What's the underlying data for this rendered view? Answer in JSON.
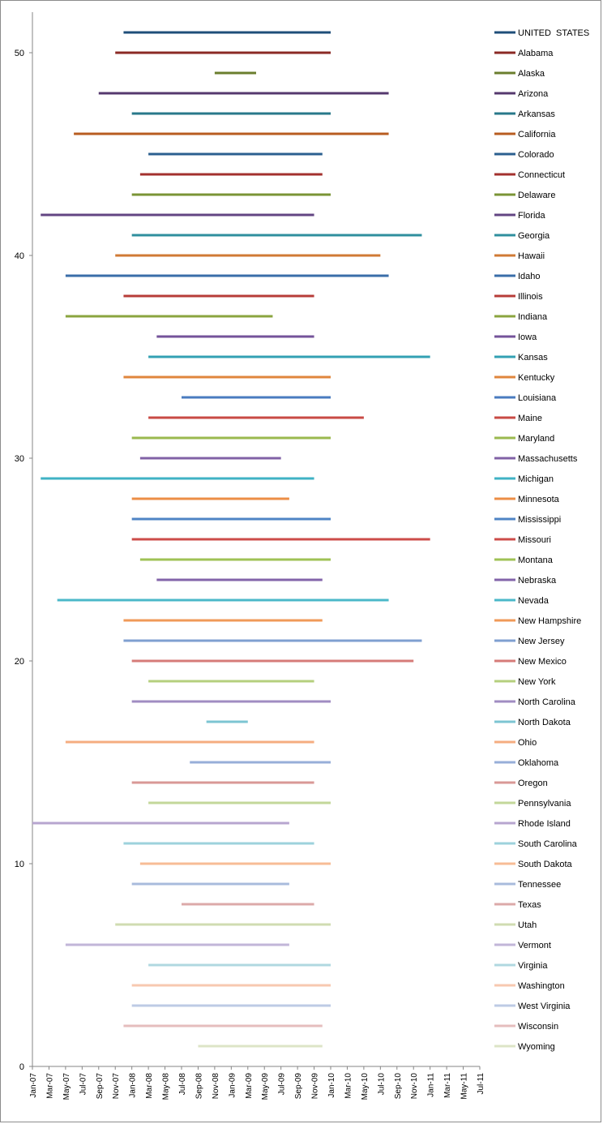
{
  "chart_data": {
    "type": "range-bar",
    "ylim": [
      0,
      52
    ],
    "yticks": [
      "0",
      "10",
      "20",
      "30",
      "40",
      "50"
    ],
    "xlim": [
      "Jan-07",
      "Jul-11"
    ],
    "xticks": [
      "Jan-07",
      "Mar-07",
      "May-07",
      "Jul-07",
      "Sep-07",
      "Nov-07",
      "Jan-08",
      "Mar-08",
      "May-08",
      "Jul-08",
      "Sep-08",
      "Nov-08",
      "Jan-09",
      "Mar-09",
      "May-09",
      "Jul-09",
      "Sep-09",
      "Nov-09",
      "Jan-10",
      "Mar-10",
      "May-10",
      "Jul-10",
      "Sep-10",
      "Nov-10",
      "Jan-11",
      "Mar-11",
      "May-11",
      "Jul-11"
    ],
    "legend_position": "right",
    "grid": false,
    "series": [
      {
        "name": "UNITED  STATES",
        "y": 51,
        "start": "Dec-07",
        "end": "Jan-10",
        "color": "#1f4e79"
      },
      {
        "name": "Alabama",
        "y": 50,
        "start": "Nov-07",
        "end": "Jan-10",
        "color": "#8b2a25"
      },
      {
        "name": "Alaska",
        "y": 49,
        "start": "Nov-08",
        "end": "Apr-09",
        "color": "#6b7e2e"
      },
      {
        "name": "Arizona",
        "y": 48,
        "start": "Sep-07",
        "end": "Aug-10",
        "color": "#55386e"
      },
      {
        "name": "Arkansas",
        "y": 47,
        "start": "Jan-08",
        "end": "Jan-10",
        "color": "#28788a"
      },
      {
        "name": "California",
        "y": 46,
        "start": "Jun-07",
        "end": "Aug-10",
        "color": "#b85d20"
      },
      {
        "name": "Colorado",
        "y": 45,
        "start": "Mar-08",
        "end": "Dec-09",
        "color": "#2b5f8f"
      },
      {
        "name": "Connecticut",
        "y": 44,
        "start": "Feb-08",
        "end": "Dec-09",
        "color": "#a3312e"
      },
      {
        "name": "Delaware",
        "y": 43,
        "start": "Jan-08",
        "end": "Jan-10",
        "color": "#7a9436"
      },
      {
        "name": "Florida",
        "y": 42,
        "start": "Feb-07",
        "end": "Nov-09",
        "color": "#634583"
      },
      {
        "name": "Georgia",
        "y": 41,
        "start": "Jan-08",
        "end": "Dec-10",
        "color": "#2f8f9e"
      },
      {
        "name": "Hawaii",
        "y": 40,
        "start": "Nov-07",
        "end": "Jul-10",
        "color": "#d07a35"
      },
      {
        "name": "Idaho",
        "y": 39,
        "start": "May-07",
        "end": "Aug-10",
        "color": "#3a6ea8"
      },
      {
        "name": "Illinois",
        "y": 38,
        "start": "Dec-07",
        "end": "Nov-09",
        "color": "#b73c38"
      },
      {
        "name": "Indiana",
        "y": 37,
        "start": "May-07",
        "end": "Jun-09",
        "color": "#8ba53f"
      },
      {
        "name": "Iowa",
        "y": 36,
        "start": "Apr-08",
        "end": "Nov-09",
        "color": "#74539a"
      },
      {
        "name": "Kansas",
        "y": 35,
        "start": "Mar-08",
        "end": "Jan-11",
        "color": "#33a1b3"
      },
      {
        "name": "Kentucky",
        "y": 34,
        "start": "Dec-07",
        "end": "Jan-10",
        "color": "#e0863d"
      },
      {
        "name": "Louisiana",
        "y": 33,
        "start": "Jul-08",
        "end": "Jan-10",
        "color": "#4a7bbf"
      },
      {
        "name": "Maine",
        "y": 32,
        "start": "Mar-08",
        "end": "May-10",
        "color": "#c94a45"
      },
      {
        "name": "Maryland",
        "y": 31,
        "start": "Jan-08",
        "end": "Jan-10",
        "color": "#9ab94e"
      },
      {
        "name": "Massachusetts",
        "y": 30,
        "start": "Feb-08",
        "end": "Jul-09",
        "color": "#8162a6"
      },
      {
        "name": "Michigan",
        "y": 29,
        "start": "Feb-07",
        "end": "Nov-09",
        "color": "#3fb2c4"
      },
      {
        "name": "Minnesota",
        "y": 28,
        "start": "Jan-08",
        "end": "Aug-09",
        "color": "#ec8e46"
      },
      {
        "name": "Mississippi",
        "y": 27,
        "start": "Jan-08",
        "end": "Jan-10",
        "color": "#4f84c4"
      },
      {
        "name": "Missouri",
        "y": 26,
        "start": "Jan-08",
        "end": "Jan-11",
        "color": "#cc4c49"
      },
      {
        "name": "Montana",
        "y": 25,
        "start": "Feb-08",
        "end": "Jan-10",
        "color": "#9fc255"
      },
      {
        "name": "Nebraska",
        "y": 24,
        "start": "Apr-08",
        "end": "Dec-09",
        "color": "#8364aa"
      },
      {
        "name": "Nevada",
        "y": 23,
        "start": "Apr-07",
        "end": "Aug-10",
        "color": "#4bb8c9"
      },
      {
        "name": "New Hampshire",
        "y": 22,
        "start": "Dec-07",
        "end": "Dec-09",
        "color": "#f09a58"
      },
      {
        "name": "New Jersey",
        "y": 21,
        "start": "Dec-07",
        "end": "Dec-10",
        "color": "#7f9fd0"
      },
      {
        "name": "New Mexico",
        "y": 20,
        "start": "Jan-08",
        "end": "Nov-10",
        "color": "#d67b78"
      },
      {
        "name": "New York",
        "y": 19,
        "start": "Mar-08",
        "end": "Nov-09",
        "color": "#b5cf7e"
      },
      {
        "name": "North Carolina",
        "y": 18,
        "start": "Jan-08",
        "end": "Jan-10",
        "color": "#a08cc2"
      },
      {
        "name": "North Dakota",
        "y": 17,
        "start": "Oct-08",
        "end": "Mar-09",
        "color": "#7cc5d2"
      },
      {
        "name": "Ohio",
        "y": 16,
        "start": "May-07",
        "end": "Nov-09",
        "color": "#f5ad80"
      },
      {
        "name": "Oklahoma",
        "y": 15,
        "start": "Aug-08",
        "end": "Jan-10",
        "color": "#97aed9"
      },
      {
        "name": "Oregon",
        "y": 14,
        "start": "Jan-08",
        "end": "Nov-09",
        "color": "#d99896"
      },
      {
        "name": "Pennsylvania",
        "y": 13,
        "start": "Mar-08",
        "end": "Jan-10",
        "color": "#c3d79a"
      },
      {
        "name": "Rhode Island",
        "y": 12,
        "start": "Dec-06",
        "end": "Aug-09",
        "color": "#b7a5cf"
      },
      {
        "name": "South Carolina",
        "y": 11,
        "start": "Dec-07",
        "end": "Nov-09",
        "color": "#9dd2dc"
      },
      {
        "name": "South Dakota",
        "y": 10,
        "start": "Feb-08",
        "end": "Jan-10",
        "color": "#f7bc96"
      },
      {
        "name": "Tennessee",
        "y": 9,
        "start": "Jan-08",
        "end": "Aug-09",
        "color": "#a9bbdc"
      },
      {
        "name": "Texas",
        "y": 8,
        "start": "Jul-08",
        "end": "Nov-09",
        "color": "#dcaaa9"
      },
      {
        "name": "Utah",
        "y": 7,
        "start": "Nov-07",
        "end": "Jan-10",
        "color": "#d0dcb1"
      },
      {
        "name": "Vermont",
        "y": 6,
        "start": "May-07",
        "end": "Aug-09",
        "color": "#c2b6d8"
      },
      {
        "name": "Virginia",
        "y": 5,
        "start": "Mar-08",
        "end": "Jan-10",
        "color": "#b0d8e0"
      },
      {
        "name": "Washington",
        "y": 4,
        "start": "Jan-08",
        "end": "Jan-10",
        "color": "#f7c8b0"
      },
      {
        "name": "West Virginia",
        "y": 3,
        "start": "Jan-08",
        "end": "Jan-10",
        "color": "#bdcbe4"
      },
      {
        "name": "Wisconsin",
        "y": 2,
        "start": "Dec-07",
        "end": "Dec-09",
        "color": "#e5bdbd"
      },
      {
        "name": "Wyoming",
        "y": 1,
        "start": "Sep-08",
        "end": "Dec-09",
        "color": "#dde4c7"
      }
    ]
  }
}
